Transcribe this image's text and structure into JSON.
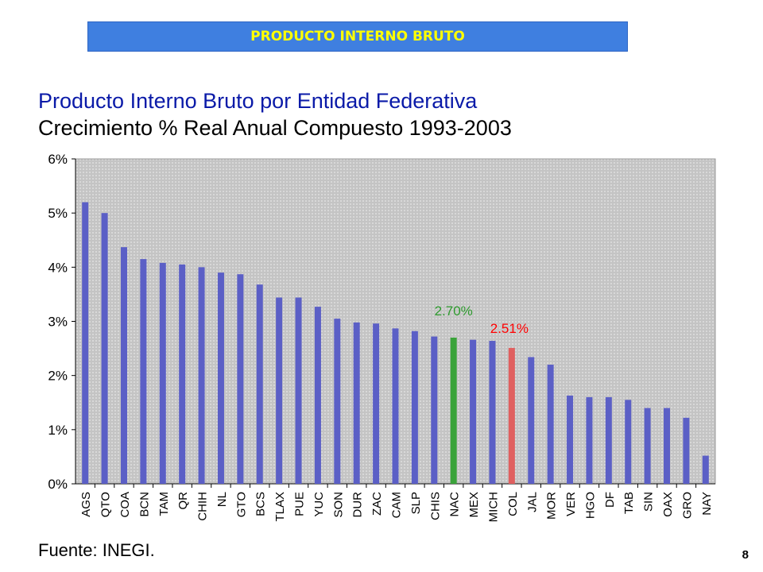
{
  "header": {
    "banner": "PRODUCTO INTERNO BRUTO"
  },
  "footer": {
    "source": "Fuente: INEGI.",
    "page_number": "8"
  },
  "chart_data": {
    "type": "bar",
    "title": "Producto Interno Bruto por Entidad Federativa",
    "subtitle": "Crecimiento % Real Anual Compuesto 1993-2003",
    "xlabel": "",
    "ylabel": "",
    "ylim": [
      0,
      6
    ],
    "y_ticks": [
      "0%",
      "1%",
      "2%",
      "3%",
      "4%",
      "5%",
      "6%"
    ],
    "grid": false,
    "categories": [
      "AGS",
      "QTO",
      "COA",
      "BCN",
      "TAM",
      "QR",
      "CHIH",
      "NL",
      "GTO",
      "BCS",
      "TLAX",
      "PUE",
      "YUC",
      "SON",
      "DUR",
      "ZAC",
      "CAM",
      "SLP",
      "CHIS",
      "NAC",
      "MEX",
      "MICH",
      "COL",
      "JAL",
      "MOR",
      "VER",
      "HGO",
      "DF",
      "TAB",
      "SIN",
      "OAX",
      "GRO",
      "NAY"
    ],
    "values": [
      5.2,
      5.0,
      4.37,
      4.15,
      4.08,
      4.05,
      4.0,
      3.9,
      3.87,
      3.68,
      3.44,
      3.44,
      3.27,
      3.05,
      2.98,
      2.96,
      2.87,
      2.82,
      2.72,
      2.7,
      2.66,
      2.64,
      2.51,
      2.34,
      2.2,
      1.63,
      1.6,
      1.6,
      1.55,
      1.4,
      1.4,
      1.22,
      0.52
    ],
    "colors": {
      "default": "#5b5fc6",
      "highlight_nac": "#3aa33a",
      "highlight_col": "#e06060",
      "plot_bg": "#c8c8c8"
    },
    "annotations": [
      {
        "category": "NAC",
        "text": "2.70%",
        "color": "#2e9a2e"
      },
      {
        "category": "COL",
        "text": "2.51%",
        "color": "#ff0000"
      }
    ]
  }
}
